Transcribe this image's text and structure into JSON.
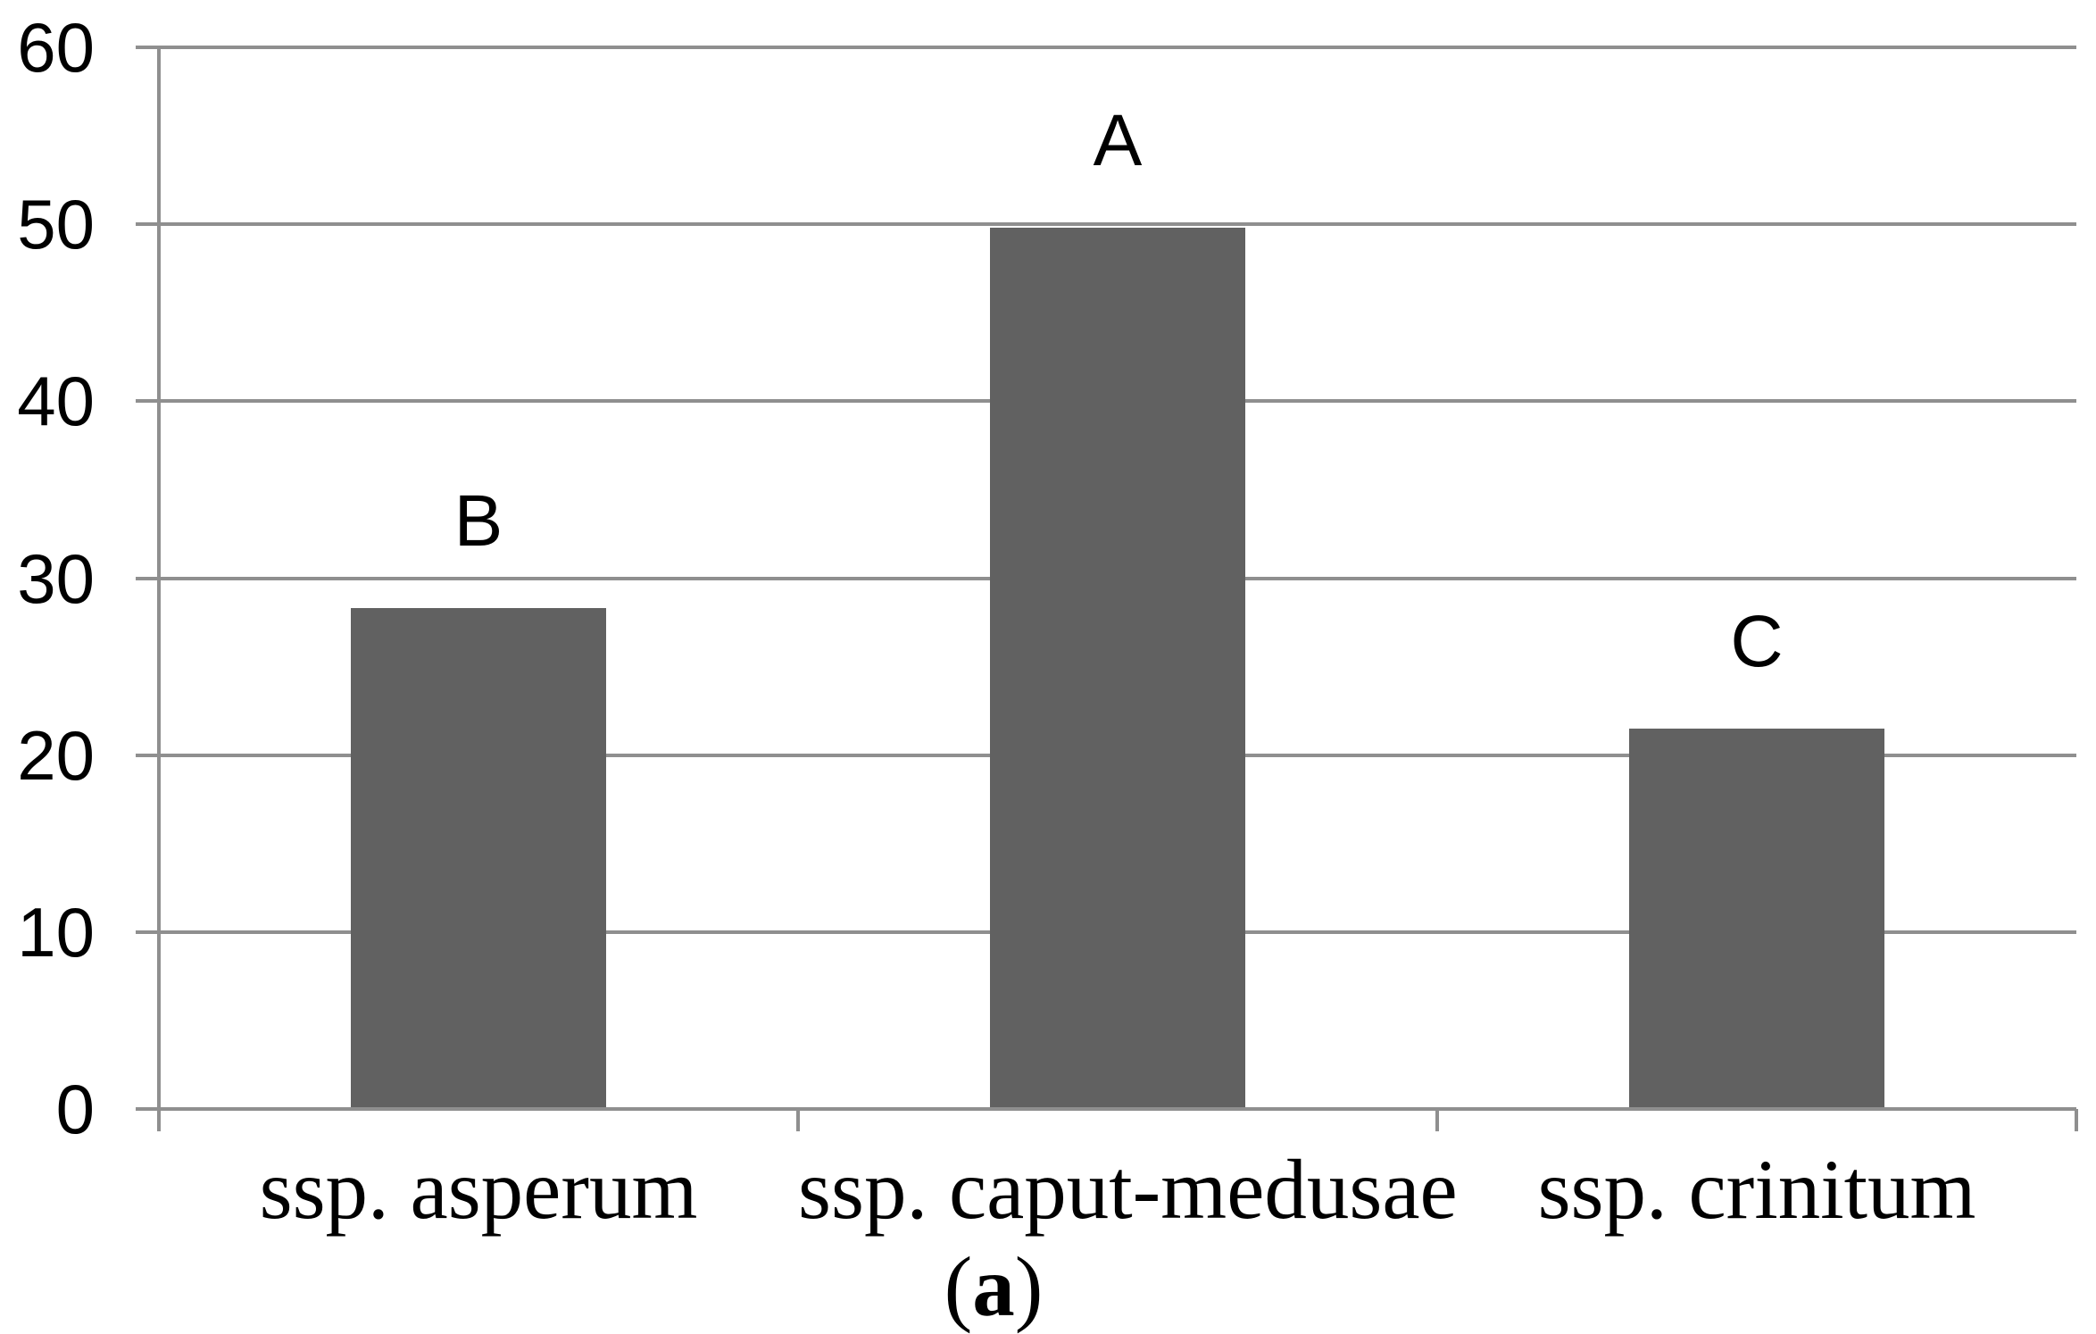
{
  "caption": {
    "open": "(",
    "letter": "a",
    "close": ")"
  },
  "chart_data": {
    "type": "bar",
    "title": "",
    "xlabel": "",
    "ylabel": "",
    "categories": [
      "ssp. asperum",
      "ssp. caput-medusae",
      "ssp. crinitum"
    ],
    "values": [
      28.3,
      49.8,
      21.5
    ],
    "bar_labels": [
      "B",
      "A",
      "C"
    ],
    "yticks": [
      0,
      10,
      20,
      30,
      40,
      50,
      60
    ],
    "ylim": [
      0,
      60
    ],
    "grid": "horizontal-major",
    "legend": "none",
    "bar_color": "#616161",
    "axis_color": "#8f8f8f",
    "text_color": "#000000",
    "bar_width_fraction": 0.4
  }
}
